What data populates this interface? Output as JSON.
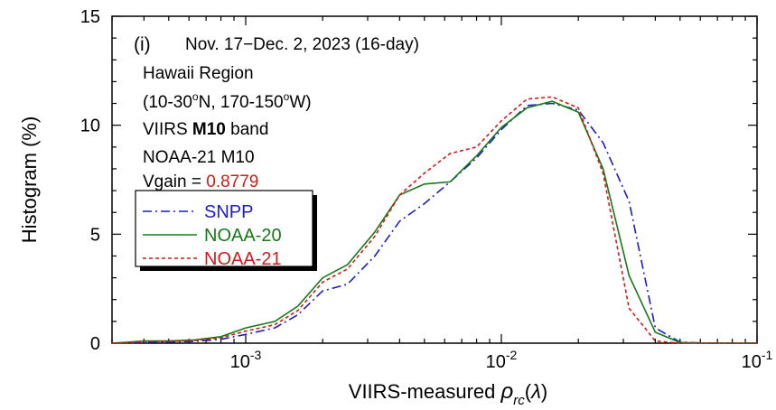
{
  "chart_data": {
    "type": "line",
    "x_scale": "log",
    "xlim": [
      0.0003,
      0.1
    ],
    "ylim": [
      0,
      15
    ],
    "grid": false,
    "legend_position": "left, below annotations",
    "xlabel_prefix": "VIIRS-measured ",
    "xlabel_symbol": "ρ",
    "xlabel_sub": "rc",
    "xlabel_arg_open": "(",
    "xlabel_arg": "λ",
    "xlabel_arg_close": ")",
    "ylabel": "Histogram (%)",
    "x_ticks": [
      {
        "base": "10",
        "exp": "-3",
        "value": 0.001
      },
      {
        "base": "10",
        "exp": "-2",
        "value": 0.01
      },
      {
        "base": "10",
        "exp": "-1",
        "value": 0.1
      }
    ],
    "y_ticks": [
      {
        "label": "0",
        "value": 0
      },
      {
        "label": "5",
        "value": 5
      },
      {
        "label": "10",
        "value": 10
      },
      {
        "label": "15",
        "value": 15
      }
    ],
    "annotations": {
      "panel": "(i)",
      "period": "Nov. 17−Dec. 2, 2023 (16-day)",
      "region": "Hawaii Region",
      "coords_a": "(10-30",
      "coords_deg1": "o",
      "coords_b": "N, 170-150",
      "coords_deg2": "o",
      "coords_c": "W)",
      "band_prefix": "VIIRS ",
      "band_bold": "M10",
      "band_suffix": " band",
      "sensor": "NOAA-21 M10",
      "vgain_label": "Vgain = ",
      "vgain_value": "0.8779",
      "vgain_color": "#d11a1a"
    },
    "series": [
      {
        "name": "SNPP",
        "color": "#1c1cc8",
        "dash": "10 4 2 4",
        "x": [
          0.0003,
          0.00035,
          0.0004,
          0.0005,
          0.00063,
          0.0008,
          0.001,
          0.0013,
          0.0016,
          0.002,
          0.0025,
          0.0032,
          0.004,
          0.005,
          0.0063,
          0.008,
          0.01,
          0.0126,
          0.0158,
          0.02,
          0.025,
          0.0316,
          0.04,
          0.05,
          0.063,
          0.08,
          0.1
        ],
        "values": [
          0.0,
          0.02,
          0.05,
          0.05,
          0.08,
          0.18,
          0.4,
          0.7,
          1.3,
          2.4,
          2.7,
          4.0,
          5.6,
          6.4,
          7.4,
          8.5,
          9.8,
          10.9,
          11.0,
          10.7,
          9.2,
          6.5,
          0.7,
          0.05,
          0.0,
          0.0,
          0.0
        ]
      },
      {
        "name": "NOAA-20",
        "color": "#157a15",
        "dash": "",
        "x": [
          0.0003,
          0.00035,
          0.0004,
          0.0005,
          0.00063,
          0.0008,
          0.001,
          0.0013,
          0.0016,
          0.002,
          0.0025,
          0.0032,
          0.004,
          0.005,
          0.0063,
          0.008,
          0.01,
          0.0126,
          0.0158,
          0.02,
          0.025,
          0.0316,
          0.04,
          0.05,
          0.063,
          0.08,
          0.1
        ],
        "values": [
          0.0,
          0.05,
          0.1,
          0.1,
          0.15,
          0.3,
          0.7,
          1.0,
          1.7,
          3.0,
          3.6,
          5.1,
          6.8,
          7.3,
          7.4,
          8.6,
          9.9,
          10.8,
          11.1,
          10.6,
          8.0,
          3.1,
          0.5,
          0.03,
          0.0,
          0.0,
          0.0
        ]
      },
      {
        "name": "NOAA-21",
        "color": "#d11a1a",
        "dash": "4 3",
        "x": [
          0.0003,
          0.00035,
          0.0004,
          0.0005,
          0.00063,
          0.0008,
          0.001,
          0.0013,
          0.0016,
          0.002,
          0.0025,
          0.0032,
          0.004,
          0.005,
          0.0063,
          0.008,
          0.01,
          0.0126,
          0.0158,
          0.02,
          0.025,
          0.0316,
          0.04,
          0.05,
          0.063,
          0.08,
          0.1
        ],
        "values": [
          0.0,
          0.03,
          0.08,
          0.08,
          0.12,
          0.25,
          0.55,
          0.85,
          1.5,
          2.8,
          3.4,
          4.9,
          6.8,
          7.8,
          8.7,
          9.0,
          10.2,
          11.2,
          11.3,
          10.8,
          7.8,
          1.6,
          0.1,
          0.0,
          0.0,
          0.0,
          0.0
        ]
      }
    ]
  }
}
